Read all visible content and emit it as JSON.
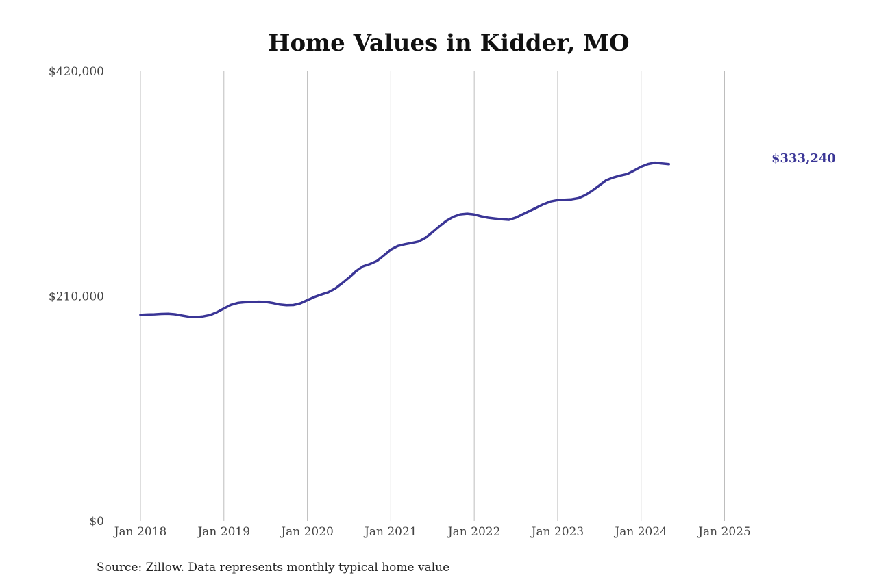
{
  "colors": {
    "line": "#3a3596",
    "grid": "#bdbdbd"
  },
  "chart_data": {
    "type": "line",
    "title": "Home Values in Kidder, MO",
    "xlabel": "",
    "ylabel": "",
    "ylim": [
      0,
      420000
    ],
    "yticks": [
      {
        "value": 0,
        "label": "$0"
      },
      {
        "value": 210000,
        "label": "$210,000"
      },
      {
        "value": 420000,
        "label": "$420,000"
      }
    ],
    "xticks": [
      {
        "value": "2018-01",
        "label": "Jan 2018"
      },
      {
        "value": "2019-01",
        "label": "Jan 2019"
      },
      {
        "value": "2020-01",
        "label": "Jan 2020"
      },
      {
        "value": "2021-01",
        "label": "Jan 2021"
      },
      {
        "value": "2022-01",
        "label": "Jan 2022"
      },
      {
        "value": "2023-01",
        "label": "Jan 2023"
      },
      {
        "value": "2024-01",
        "label": "Jan 2024"
      },
      {
        "value": "2025-01",
        "label": "Jan 2025"
      }
    ],
    "grid": "vertical",
    "end_label": "$333,240",
    "series": [
      {
        "points": [
          [
            "2018-01",
            192500
          ],
          [
            "2018-02",
            192800
          ],
          [
            "2018-03",
            193000
          ],
          [
            "2018-04",
            193400
          ],
          [
            "2018-05",
            193600
          ],
          [
            "2018-06",
            193000
          ],
          [
            "2018-07",
            191800
          ],
          [
            "2018-08",
            190700
          ],
          [
            "2018-09",
            190400
          ],
          [
            "2018-10",
            191000
          ],
          [
            "2018-11",
            192300
          ],
          [
            "2018-12",
            195000
          ],
          [
            "2019-01",
            198500
          ],
          [
            "2019-02",
            201800
          ],
          [
            "2019-03",
            203700
          ],
          [
            "2019-04",
            204300
          ],
          [
            "2019-05",
            204500
          ],
          [
            "2019-06",
            204800
          ],
          [
            "2019-07",
            204600
          ],
          [
            "2019-08",
            203600
          ],
          [
            "2019-09",
            202200
          ],
          [
            "2019-10",
            201500
          ],
          [
            "2019-11",
            201700
          ],
          [
            "2019-12",
            203300
          ],
          [
            "2020-01",
            206200
          ],
          [
            "2020-02",
            209200
          ],
          [
            "2020-03",
            211500
          ],
          [
            "2020-04",
            213600
          ],
          [
            "2020-05",
            217000
          ],
          [
            "2020-06",
            222000
          ],
          [
            "2020-07",
            227300
          ],
          [
            "2020-08",
            233200
          ],
          [
            "2020-09",
            237800
          ],
          [
            "2020-10",
            240000
          ],
          [
            "2020-11",
            242800
          ],
          [
            "2020-12",
            248000
          ],
          [
            "2021-01",
            253400
          ],
          [
            "2021-02",
            256800
          ],
          [
            "2021-03",
            258400
          ],
          [
            "2021-04",
            259600
          ],
          [
            "2021-05",
            261000
          ],
          [
            "2021-06",
            264500
          ],
          [
            "2021-07",
            269800
          ],
          [
            "2021-08",
            275200
          ],
          [
            "2021-09",
            280300
          ],
          [
            "2021-10",
            284100
          ],
          [
            "2021-11",
            286300
          ],
          [
            "2021-12",
            287000
          ],
          [
            "2022-01",
            286200
          ],
          [
            "2022-02",
            284500
          ],
          [
            "2022-03",
            283200
          ],
          [
            "2022-04",
            282400
          ],
          [
            "2022-05",
            281800
          ],
          [
            "2022-06",
            281300
          ],
          [
            "2022-07",
            283300
          ],
          [
            "2022-08",
            286500
          ],
          [
            "2022-09",
            289600
          ],
          [
            "2022-10",
            292800
          ],
          [
            "2022-11",
            295900
          ],
          [
            "2022-12",
            298400
          ],
          [
            "2023-01",
            299600
          ],
          [
            "2023-02",
            300000
          ],
          [
            "2023-03",
            300300
          ],
          [
            "2023-04",
            301500
          ],
          [
            "2023-05",
            304300
          ],
          [
            "2023-06",
            308500
          ],
          [
            "2023-07",
            313400
          ],
          [
            "2023-08",
            318200
          ],
          [
            "2023-09",
            320700
          ],
          [
            "2023-10",
            322600
          ],
          [
            "2023-11",
            324000
          ],
          [
            "2023-12",
            327300
          ],
          [
            "2024-01",
            330800
          ],
          [
            "2024-02",
            333300
          ],
          [
            "2024-03",
            334600
          ],
          [
            "2024-04",
            333800
          ],
          [
            "2024-05",
            333240
          ]
        ]
      }
    ],
    "source": "Source: Zillow. Data represents monthly typical home value"
  }
}
